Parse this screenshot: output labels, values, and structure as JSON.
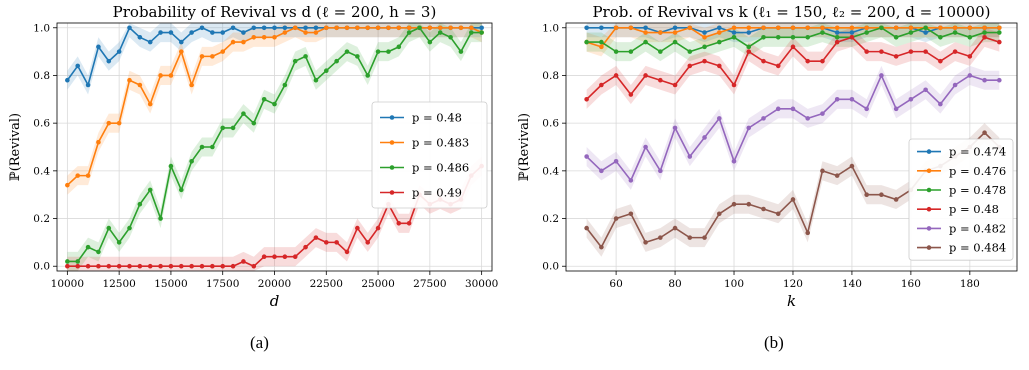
{
  "chart_data": [
    {
      "type": "line",
      "title": "Probability of Revival vs d (ℓ = 200, h = 3)",
      "xlabel": "d",
      "ylabel": "ℙ(Revival)",
      "xlim": [
        9500,
        30500
      ],
      "ylim": [
        -0.02,
        1.02
      ],
      "xticks": [
        10000,
        12500,
        15000,
        17500,
        20000,
        22500,
        25000,
        27500,
        30000
      ],
      "xtick_labels": [
        "10000",
        "12500",
        "15000",
        "17500",
        "20000",
        "22500",
        "25000",
        "27500",
        "30000"
      ],
      "yticks": [
        0.0,
        0.2,
        0.4,
        0.6,
        0.8,
        1.0
      ],
      "ytick_labels": [
        "0.0",
        "0.2",
        "0.4",
        "0.6",
        "0.8",
        "1.0"
      ],
      "grid": true,
      "legend_position": "center-right",
      "caption": "(a)",
      "x": [
        10000,
        10500,
        11000,
        11500,
        12000,
        12500,
        13000,
        13500,
        14000,
        14500,
        15000,
        15500,
        16000,
        16500,
        17000,
        17500,
        18000,
        18500,
        19000,
        19500,
        20000,
        20500,
        21000,
        21500,
        22000,
        22500,
        23000,
        23500,
        24000,
        24500,
        25000,
        25500,
        26000,
        26500,
        27000,
        27500,
        28000,
        28500,
        29000,
        29500,
        30000
      ],
      "series": [
        {
          "name": "p = 0.48",
          "color": "#1f77b4",
          "values": [
            0.78,
            0.84,
            0.76,
            0.92,
            0.86,
            0.9,
            1.0,
            0.96,
            0.94,
            0.98,
            0.98,
            0.94,
            0.98,
            1.0,
            0.98,
            0.98,
            1.0,
            0.98,
            1.0,
            1.0,
            1.0,
            1.0,
            1.0,
            1.0,
            1.0,
            1.0,
            1.0,
            1.0,
            1.0,
            1.0,
            1.0,
            1.0,
            1.0,
            1.0,
            1.0,
            1.0,
            1.0,
            1.0,
            1.0,
            1.0,
            1.0
          ]
        },
        {
          "name": "p = 0.483",
          "color": "#ff7f0e",
          "values": [
            0.34,
            0.38,
            0.38,
            0.52,
            0.6,
            0.6,
            0.78,
            0.76,
            0.68,
            0.8,
            0.8,
            0.9,
            0.76,
            0.88,
            0.88,
            0.9,
            0.94,
            0.94,
            0.96,
            0.96,
            0.96,
            0.98,
            1.0,
            0.98,
            0.98,
            1.0,
            1.0,
            1.0,
            1.0,
            1.0,
            1.0,
            1.0,
            1.0,
            1.0,
            1.0,
            1.0,
            1.0,
            1.0,
            1.0,
            1.0,
            0.98
          ]
        },
        {
          "name": "p = 0.486",
          "color": "#2ca02c",
          "values": [
            0.02,
            0.02,
            0.08,
            0.06,
            0.16,
            0.1,
            0.16,
            0.26,
            0.32,
            0.2,
            0.42,
            0.32,
            0.44,
            0.5,
            0.5,
            0.58,
            0.58,
            0.64,
            0.6,
            0.7,
            0.68,
            0.76,
            0.86,
            0.88,
            0.78,
            0.82,
            0.86,
            0.9,
            0.88,
            0.8,
            0.9,
            0.9,
            0.92,
            0.98,
            1.0,
            0.94,
            0.98,
            0.96,
            0.9,
            0.98,
            0.98
          ]
        },
        {
          "name": "p = 0.49",
          "color": "#d62728",
          "values": [
            0.0,
            0.0,
            0.0,
            0.0,
            0.0,
            0.0,
            0.0,
            0.0,
            0.0,
            0.0,
            0.0,
            0.0,
            0.0,
            0.0,
            0.0,
            0.0,
            0.0,
            0.02,
            0.0,
            0.04,
            0.04,
            0.04,
            0.04,
            0.08,
            0.12,
            0.1,
            0.1,
            0.06,
            0.16,
            0.1,
            0.16,
            0.26,
            0.18,
            0.18,
            0.3,
            0.26,
            0.28,
            0.26,
            0.28,
            0.38,
            0.42
          ]
        }
      ]
    },
    {
      "type": "line",
      "title": "Prob. of Revival vs k (ℓ₁ = 150, ℓ₂ = 200, d = 10000)",
      "xlabel": "k",
      "ylabel": "ℙ(Revival)",
      "xlim": [
        43,
        196
      ],
      "ylim": [
        -0.02,
        1.02
      ],
      "xticks": [
        60,
        80,
        100,
        120,
        140,
        160,
        180
      ],
      "xtick_labels": [
        "60",
        "80",
        "100",
        "120",
        "140",
        "160",
        "180"
      ],
      "yticks": [
        0.0,
        0.2,
        0.4,
        0.6,
        0.8,
        1.0
      ],
      "ytick_labels": [
        "0.0",
        "0.2",
        "0.4",
        "0.6",
        "0.8",
        "1.0"
      ],
      "grid": true,
      "legend_position": "lower-right",
      "caption": "(b)",
      "x": [
        50,
        55,
        60,
        65,
        70,
        75,
        80,
        85,
        90,
        95,
        100,
        105,
        110,
        115,
        120,
        125,
        130,
        135,
        140,
        145,
        150,
        155,
        160,
        165,
        170,
        175,
        180,
        185,
        190
      ],
      "series": [
        {
          "name": "p = 0.474",
          "color": "#1f77b4",
          "values": [
            1.0,
            1.0,
            1.0,
            1.0,
            1.0,
            0.98,
            1.0,
            1.0,
            0.98,
            1.0,
            0.98,
            0.98,
            1.0,
            1.0,
            1.0,
            1.0,
            1.0,
            0.98,
            0.98,
            1.0,
            1.0,
            1.0,
            1.0,
            0.98,
            1.0,
            1.0,
            1.0,
            1.0,
            1.0
          ]
        },
        {
          "name": "p = 0.476",
          "color": "#ff7f0e",
          "values": [
            0.94,
            0.92,
            1.0,
            1.0,
            0.98,
            0.98,
            0.98,
            1.0,
            0.96,
            0.98,
            1.0,
            1.0,
            1.0,
            1.0,
            1.0,
            1.0,
            1.0,
            1.0,
            1.0,
            1.0,
            1.0,
            1.0,
            1.0,
            1.0,
            1.0,
            1.0,
            1.0,
            1.0,
            1.0
          ]
        },
        {
          "name": "p = 0.478",
          "color": "#2ca02c",
          "values": [
            0.94,
            0.94,
            0.9,
            0.9,
            0.94,
            0.9,
            0.94,
            0.9,
            0.92,
            0.94,
            0.96,
            0.92,
            0.96,
            0.96,
            0.96,
            0.96,
            0.98,
            0.96,
            0.96,
            0.98,
            1.0,
            0.96,
            0.98,
            1.0,
            0.96,
            0.98,
            0.96,
            0.98,
            0.98
          ]
        },
        {
          "name": "p = 0.48",
          "color": "#d62728",
          "values": [
            0.7,
            0.76,
            0.8,
            0.72,
            0.8,
            0.78,
            0.76,
            0.84,
            0.86,
            0.84,
            0.76,
            0.9,
            0.86,
            0.84,
            0.92,
            0.86,
            0.86,
            0.94,
            0.96,
            0.9,
            0.9,
            0.88,
            0.9,
            0.9,
            0.86,
            0.9,
            0.88,
            0.96,
            0.94
          ]
        },
        {
          "name": "p = 0.482",
          "color": "#9467bd",
          "values": [
            0.46,
            0.4,
            0.44,
            0.36,
            0.5,
            0.4,
            0.58,
            0.46,
            0.54,
            0.62,
            0.44,
            0.58,
            0.62,
            0.66,
            0.66,
            0.62,
            0.64,
            0.7,
            0.7,
            0.66,
            0.8,
            0.66,
            0.7,
            0.74,
            0.68,
            0.76,
            0.8,
            0.78,
            0.78
          ]
        },
        {
          "name": "p = 0.484",
          "color": "#8c564b",
          "values": [
            0.16,
            0.08,
            0.2,
            0.22,
            0.1,
            0.12,
            0.16,
            0.12,
            0.12,
            0.22,
            0.26,
            0.26,
            0.24,
            0.22,
            0.28,
            0.14,
            0.4,
            0.38,
            0.42,
            0.3,
            0.3,
            0.28,
            0.32,
            0.4,
            0.42,
            0.46,
            0.5,
            0.56,
            0.5
          ]
        }
      ]
    }
  ]
}
